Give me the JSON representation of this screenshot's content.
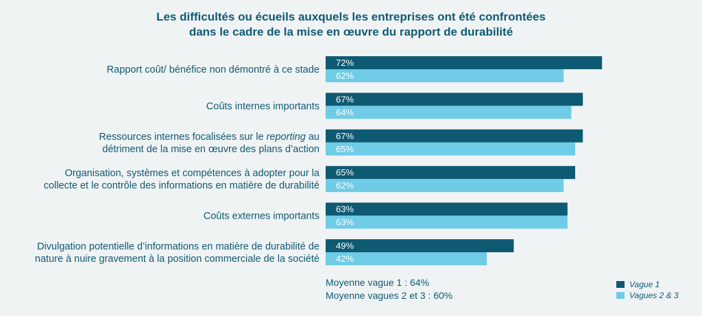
{
  "chart_data": {
    "type": "bar",
    "orientation": "horizontal",
    "title_lines": [
      "Les difficultés ou écueils auxquels les entreprises ont été confrontées",
      "dans le cadre de la mise en œuvre du rapport de durabilité"
    ],
    "categories": [
      [
        "Rapport coût/ bénéfice non démontré à ce stade"
      ],
      [
        "Coûts internes importants"
      ],
      [
        "Ressources internes focalisées sur le |reporting| au",
        "détriment de la mise en œuvre des plans d’action"
      ],
      [
        "Organisation, systèmes et compétences à adopter pour la",
        "collecte et le contrôle des informations en matière de durabilité"
      ],
      [
        "Coûts externes importants"
      ],
      [
        "Divulgation potentielle d’informations en matière de durabilité de",
        "nature à nuire gravement à la position commerciale de la société"
      ]
    ],
    "series": [
      {
        "name": "Vague 1",
        "color": "#0f5a73",
        "values": [
          72,
          67,
          67,
          65,
          63,
          49
        ]
      },
      {
        "name": "Vagues 2 & 3",
        "color": "#6fcbe6",
        "values": [
          62,
          64,
          65,
          62,
          63,
          42
        ]
      }
    ],
    "value_suffix": "%",
    "xlim": [
      0,
      100
    ],
    "grid": false,
    "averages": [
      "Moyenne vague 1 : 64%",
      "Moyenne vagues 2 et 3 : 60%"
    ],
    "legend_position": "bottom-right"
  }
}
